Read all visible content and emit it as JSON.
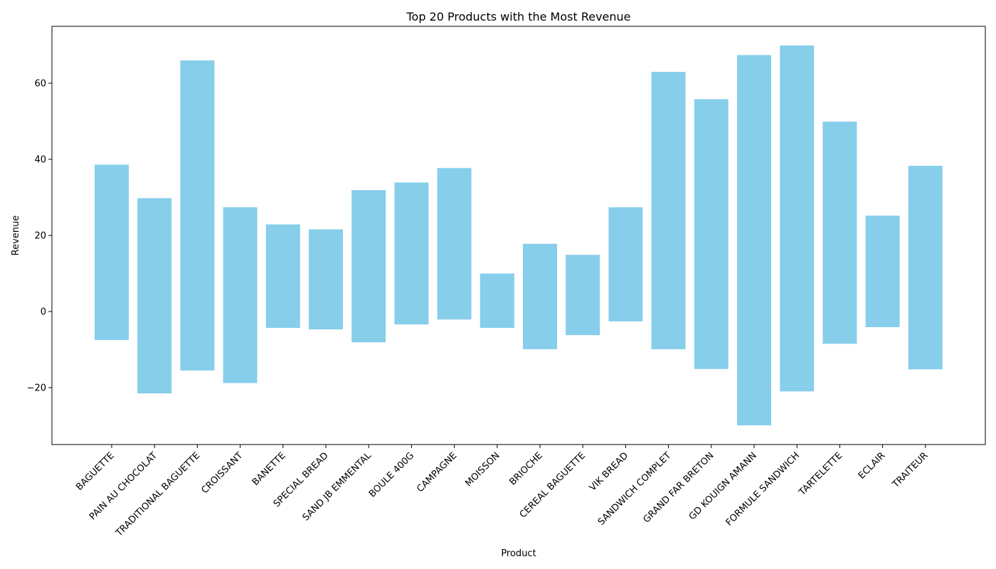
{
  "chart_data": {
    "type": "bar",
    "title": "Top 20 Products with the Most Revenue",
    "xlabel": "Product",
    "ylabel": "Revenue",
    "ylim": [
      -35,
      75
    ],
    "yticks": [
      -20,
      0,
      20,
      40,
      60
    ],
    "grid": false,
    "bar_color": "#87CEEB",
    "categories": [
      "BAGUETTE",
      "PAIN AU CHOCOLAT",
      "TRADITIONAL BAGUETTE",
      "CROISSANT",
      "BANETTE",
      "SPECIAL BREAD",
      "SAND JB EMMENTAL",
      "BOULE 400G",
      "CAMPAGNE",
      "MOISSON",
      "BRIOCHE",
      "CEREAL BAGUETTE",
      "VIK BREAD",
      "SANDWICH COMPLET",
      "GRAND FAR BRETON",
      "GD KOUIGN AMANN",
      "FORMULE SANDWICH",
      "TARTELETTE",
      "ECLAIR",
      "TRAITEUR"
    ],
    "bottoms": [
      -7.5,
      -21.5,
      -15.5,
      -18.8,
      -4.3,
      -4.7,
      -8.1,
      -3.4,
      -2.1,
      -4.3,
      -9.9,
      -6.2,
      -2.6,
      -9.9,
      -15.1,
      -29.9,
      -21.0,
      -8.5,
      -4.1,
      -15.2
    ],
    "tops": [
      38.6,
      29.8,
      66.0,
      27.4,
      22.9,
      21.6,
      31.9,
      33.9,
      37.7,
      10.0,
      17.8,
      14.9,
      27.4,
      63.0,
      55.8,
      67.4,
      69.9,
      49.9,
      25.2,
      38.3
    ]
  }
}
